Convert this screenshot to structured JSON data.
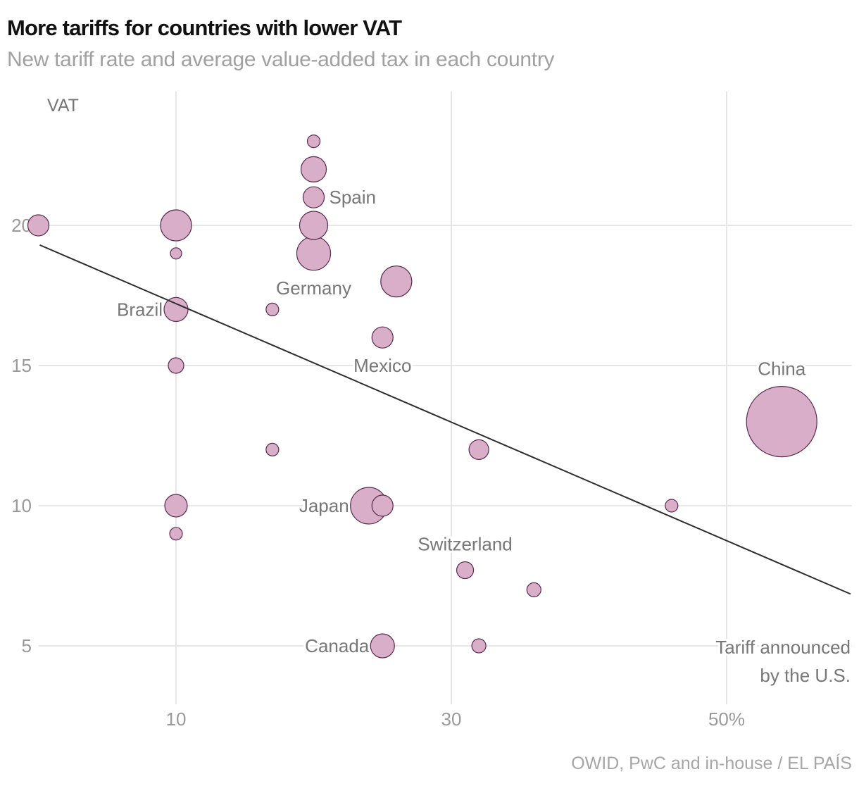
{
  "chart_data": {
    "type": "scatter",
    "title": "More tariffs for countries with lower VAT",
    "subtitle": "New tariff rate and average value-added tax in each country",
    "source": "OWID, PwC and in-house / EL PAÍS",
    "xlabel": "Tariff announced by the U.S.",
    "xlabel_lines": [
      "Tariff announced",
      "by the U.S."
    ],
    "ylabel": "VAT",
    "xlim": [
      0,
      59
    ],
    "ylim": [
      3.2,
      24.5
    ],
    "x_ticks": [
      {
        "value": 10,
        "label": "10"
      },
      {
        "value": 30,
        "label": "30"
      },
      {
        "value": 50,
        "label": "50%"
      }
    ],
    "y_ticks": [
      {
        "value": 5,
        "label": "5"
      },
      {
        "value": 10,
        "label": "10"
      },
      {
        "value": 15,
        "label": "15"
      },
      {
        "value": 20,
        "label": "20"
      }
    ],
    "grid": true,
    "bubble_color": "#d8aec9",
    "bubble_stroke": "#5a2a4e",
    "trend_line": {
      "x": [
        0.1,
        59
      ],
      "y": [
        19.3,
        6.85
      ]
    },
    "points": [
      {
        "x": 0,
        "y": 20,
        "size": 15,
        "label": ""
      },
      {
        "x": 10,
        "y": 20,
        "size": 22,
        "label": ""
      },
      {
        "x": 10,
        "y": 19,
        "size": 8,
        "label": ""
      },
      {
        "x": 10,
        "y": 17,
        "size": 17,
        "label": "Brazil",
        "label_pos": "left"
      },
      {
        "x": 10,
        "y": 15,
        "size": 11,
        "label": ""
      },
      {
        "x": 10,
        "y": 10,
        "size": 16,
        "label": ""
      },
      {
        "x": 10,
        "y": 9,
        "size": 9,
        "label": ""
      },
      {
        "x": 20,
        "y": 23,
        "size": 9,
        "label": ""
      },
      {
        "x": 20,
        "y": 22,
        "size": 18,
        "label": ""
      },
      {
        "x": 20,
        "y": 21,
        "size": 15,
        "label": "Spain",
        "label_pos": "right"
      },
      {
        "x": 20,
        "y": 20,
        "size": 20,
        "label": ""
      },
      {
        "x": 20,
        "y": 19,
        "size": 24,
        "label": "Germany",
        "label_pos": "below"
      },
      {
        "x": 17,
        "y": 17,
        "size": 9,
        "label": ""
      },
      {
        "x": 17,
        "y": 12,
        "size": 9,
        "label": ""
      },
      {
        "x": 26,
        "y": 18,
        "size": 22,
        "label": ""
      },
      {
        "x": 25,
        "y": 16,
        "size": 15,
        "label": "Mexico",
        "label_pos": "below"
      },
      {
        "x": 32,
        "y": 12,
        "size": 14,
        "label": ""
      },
      {
        "x": 25,
        "y": 10,
        "size": 15,
        "label": ""
      },
      {
        "x": 24,
        "y": 10,
        "size": 26,
        "label": "Japan",
        "label_pos": "left"
      },
      {
        "x": 31,
        "y": 7.7,
        "size": 12,
        "label": "Switzerland",
        "label_pos": "above"
      },
      {
        "x": 36,
        "y": 7,
        "size": 10,
        "label": ""
      },
      {
        "x": 25,
        "y": 5,
        "size": 17,
        "label": "Canada",
        "label_pos": "left"
      },
      {
        "x": 32,
        "y": 5,
        "size": 10,
        "label": ""
      },
      {
        "x": 46,
        "y": 10,
        "size": 9,
        "label": ""
      },
      {
        "x": 54,
        "y": 13,
        "size": 50,
        "label": "China",
        "label_pos": "above"
      }
    ]
  }
}
